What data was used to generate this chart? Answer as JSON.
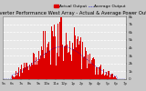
{
  "title": "Solar PV/Inverter Performance West Array - Actual & Average Power Output",
  "title_fontsize": 3.8,
  "background_color": "#c8c8c8",
  "plot_bg_color": "#e8e8e8",
  "grid_color": "#ffffff",
  "bar_color": "#dd0000",
  "avg_line_color": "#0000cc",
  "ylim": [
    0,
    8000
  ],
  "num_bars": 144,
  "legend_actual": "Actual Output",
  "legend_average": "Average Output",
  "legend_fontsize": 3.2,
  "xlabel_fontsize": 2.8,
  "ylabel_fontsize": 3.0,
  "tick_color": "#222222",
  "ytick_vals": [
    0,
    1000,
    2000,
    3000,
    4000,
    5000,
    6000,
    7000,
    8000
  ],
  "ytick_labels": [
    "0",
    "1k",
    "2k",
    "3k",
    "4k",
    "5k",
    "6k",
    "7k",
    "8k"
  ],
  "time_labels": [
    "5a",
    "6a",
    "7a",
    "8a",
    "9a",
    "10a",
    "11a",
    "12p",
    "1p",
    "2p",
    "3p",
    "4p",
    "5p",
    "6p",
    "7p"
  ]
}
